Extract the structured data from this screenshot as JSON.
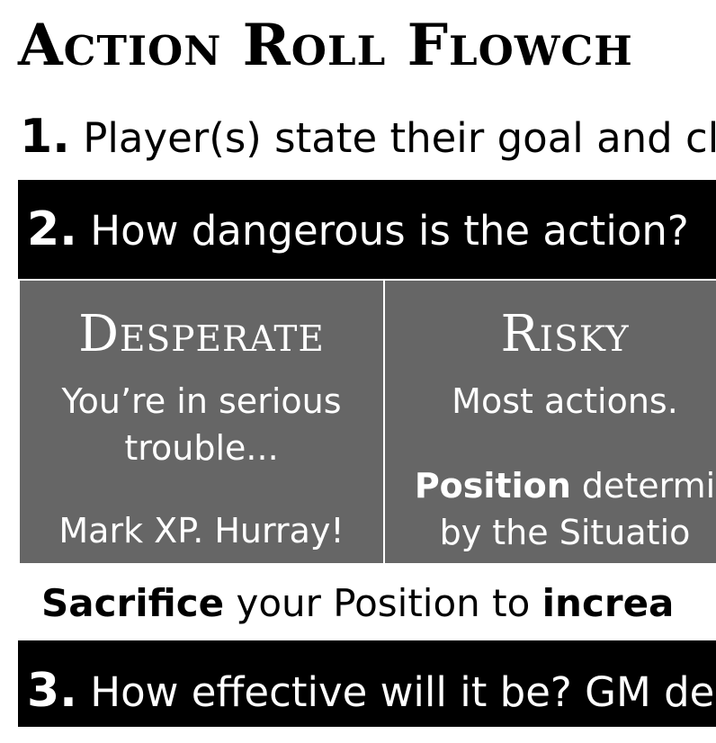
{
  "title": "Action Roll Flowch",
  "step1": {
    "number": "1.",
    "text": "Player(s) state their goal and cl"
  },
  "step2": {
    "number": "2.",
    "text": "How dangerous is the action?"
  },
  "desperate": {
    "title": "Desperate",
    "line1": "You’re in serious",
    "line2": "trouble...",
    "line3": "Mark XP. Hurray!"
  },
  "risky": {
    "title": "Risky",
    "line1": "Most actions.",
    "position_bold": "Position",
    "position_rest": " determi",
    "line3": "by the Situatio"
  },
  "sacrifice": {
    "bold1": "Sacrifice",
    "mid": " your Position to ",
    "bold2": "increa"
  },
  "step3": {
    "number": "3.",
    "text": "How effective will it be? GM de"
  }
}
